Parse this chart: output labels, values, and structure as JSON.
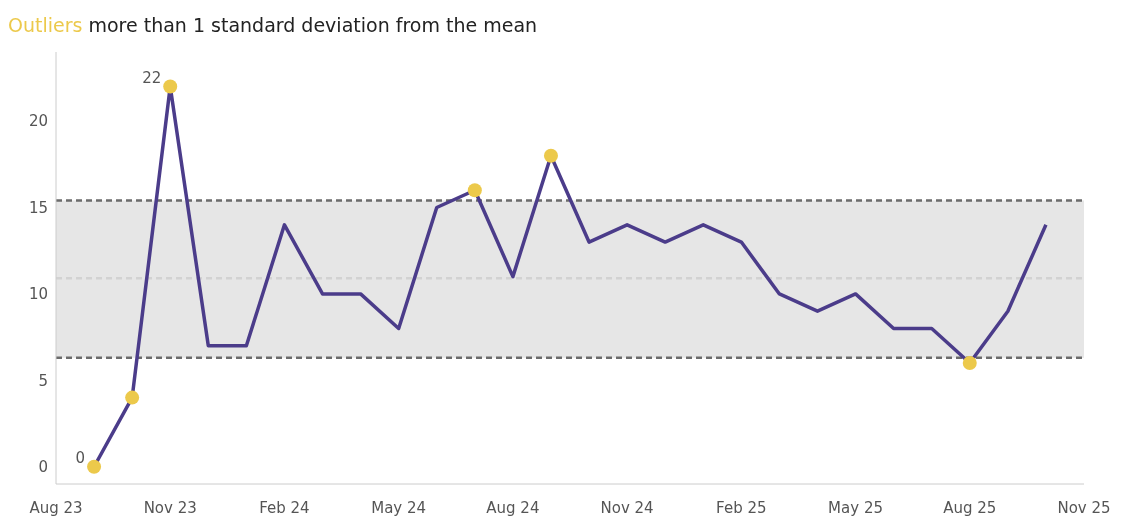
{
  "chart_data": {
    "type": "line",
    "title": "Outliers more than 1 standard deviation from the mean",
    "x": [
      "2023-09",
      "2023-10",
      "2023-11",
      "2023-12",
      "2024-01",
      "2024-02",
      "2024-03",
      "2024-04",
      "2024-05",
      "2024-06",
      "2024-07",
      "2024-08",
      "2024-09",
      "2024-10",
      "2024-11",
      "2024-12",
      "2025-01",
      "2025-02",
      "2025-03",
      "2025-04",
      "2025-05",
      "2025-06",
      "2025-07",
      "2025-08",
      "2025-09",
      "2025-10"
    ],
    "series": [
      {
        "color": "#4b3c8a",
        "values": [
          0,
          4,
          22,
          7,
          7,
          14,
          10,
          10,
          8,
          15,
          16,
          11,
          18,
          13,
          14,
          13,
          14,
          13,
          10,
          9,
          10,
          8,
          8,
          6,
          9,
          14
        ]
      },
      {
        "type": "scatter",
        "marker": "circle",
        "color": "#ecc94b",
        "values": [
          0,
          4,
          22,
          null,
          null,
          null,
          null,
          null,
          null,
          null,
          16,
          null,
          18,
          null,
          null,
          null,
          null,
          null,
          null,
          null,
          null,
          null,
          null,
          6,
          null,
          null
        ]
      }
    ],
    "xlim": [
      "2023-08",
      "2025-11"
    ],
    "xticks": [
      {
        "value": "2023-08",
        "label": "Aug 23"
      },
      {
        "value": "2023-11",
        "label": "Nov 23"
      },
      {
        "value": "2024-02",
        "label": "Feb 24"
      },
      {
        "value": "2024-05",
        "label": "May 24"
      },
      {
        "value": "2024-08",
        "label": "Aug 24"
      },
      {
        "value": "2024-11",
        "label": "Nov 24"
      },
      {
        "value": "2025-02",
        "label": "Feb 25"
      },
      {
        "value": "2025-05",
        "label": "May 25"
      },
      {
        "value": "2025-08",
        "label": "Aug 25"
      },
      {
        "value": "2025-11",
        "label": "Nov 25"
      }
    ],
    "ylim": [
      -1,
      24
    ],
    "yticks": [
      0,
      5,
      10,
      15,
      20
    ],
    "bands": [
      {
        "axis": "y",
        "from": 6.3,
        "to": 15.4,
        "color": "#e6e6e6"
      }
    ],
    "ref_lines": [
      {
        "axis": "y",
        "value": 15.4,
        "color": "#6b6b6b",
        "line_style": "dashed"
      },
      {
        "axis": "y",
        "value": 6.3,
        "color": "#6b6b6b",
        "line_style": "dashed"
      },
      {
        "axis": "y",
        "value": 10.9,
        "color": "#d2d2d2",
        "line_style": "dashed"
      }
    ],
    "annotations": [
      {
        "text": "22",
        "x": "2023-11",
        "y": 22
      },
      {
        "text": "0",
        "x": "2023-09",
        "y": 0
      }
    ],
    "grid": false,
    "line_style": "solid"
  }
}
